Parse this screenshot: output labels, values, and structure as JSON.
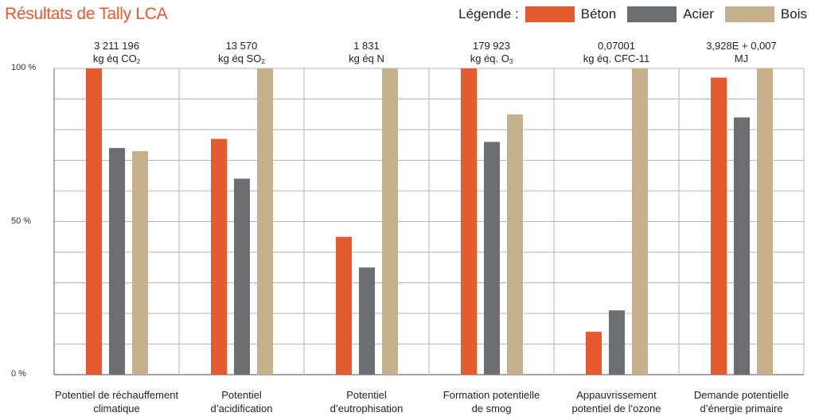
{
  "title": "Résultats de Tally LCA",
  "legend": {
    "label": "Légende :",
    "items": [
      {
        "name": "Béton",
        "color": "#e55a2f"
      },
      {
        "name": "Acier",
        "color": "#6d6e71"
      },
      {
        "name": "Bois",
        "color": "#c7b08c"
      }
    ]
  },
  "headers": [
    {
      "value": "3 211 196",
      "unit_main": "kg éq CO",
      "unit_sub": "2"
    },
    {
      "value": "13 570",
      "unit_main": "kg éq SO",
      "unit_sub": "2"
    },
    {
      "value": "1 831",
      "unit_main": "kg éq N",
      "unit_sub": ""
    },
    {
      "value": "179 923",
      "unit_main": "kg  éq. O",
      "unit_sub": "3"
    },
    {
      "value": "0,07001",
      "unit_main": "kg éq. CFC-11",
      "unit_sub": ""
    },
    {
      "value": "3,928E + 0,007",
      "unit_main": "MJ",
      "unit_sub": ""
    }
  ],
  "chart_data": {
    "type": "bar",
    "categories": [
      [
        "Potentiel de réchauffement",
        "climatique"
      ],
      [
        "Potentiel",
        "d’acidification"
      ],
      [
        "Potentiel",
        "d’eutrophisation"
      ],
      [
        "Formation potentielle",
        "de smog"
      ],
      [
        "Appauvrissement",
        "potentiel de l’ozone"
      ],
      [
        "Demande potentielle",
        "d’énergie primaire"
      ]
    ],
    "series": [
      {
        "name": "Béton",
        "color": "#e55a2f",
        "values": [
          100,
          77,
          45,
          100,
          14,
          97
        ]
      },
      {
        "name": "Acier",
        "color": "#6d6e71",
        "values": [
          74,
          64,
          35,
          76,
          21,
          84
        ]
      },
      {
        "name": "Bois",
        "color": "#c7b08c",
        "values": [
          73,
          100,
          100,
          85,
          100,
          100
        ]
      }
    ],
    "ylim": [
      0,
      100
    ],
    "yticks": [
      "0 %",
      "50 %",
      "100 %"
    ],
    "ytick_values": [
      0,
      50,
      100
    ],
    "grid": true
  }
}
